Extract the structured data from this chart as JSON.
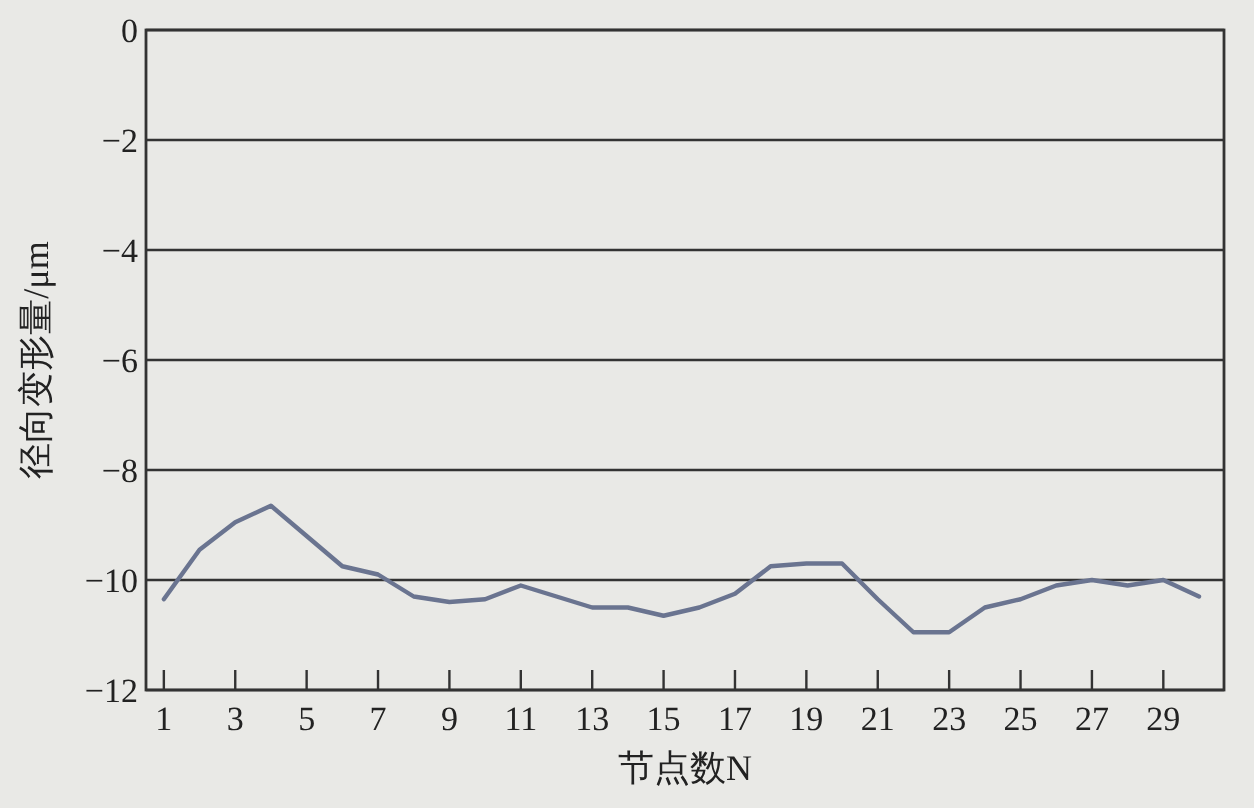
{
  "chart_data": {
    "type": "line",
    "xlabel": "节点数N",
    "ylabel": "径向变形量/μm",
    "x": [
      1,
      2,
      3,
      4,
      5,
      6,
      7,
      8,
      9,
      10,
      11,
      12,
      13,
      14,
      15,
      16,
      17,
      18,
      19,
      20,
      21,
      22,
      23,
      24,
      25,
      26,
      27,
      28,
      29,
      30
    ],
    "series": [
      {
        "color": "#6a7490",
        "values": [
          -10.35,
          -9.45,
          -8.95,
          -8.65,
          -9.2,
          -9.75,
          -9.9,
          -10.3,
          -10.4,
          -10.35,
          -10.1,
          -10.3,
          -10.5,
          -10.5,
          -10.65,
          -10.5,
          -10.25,
          -9.75,
          -9.7,
          -9.7,
          -10.35,
          -10.95,
          -10.95,
          -10.5,
          -10.35,
          -10.1,
          -10.0,
          -10.1,
          -10.0,
          -10.3
        ]
      }
    ],
    "xlim": [
      0.5,
      30.7
    ],
    "ylim": [
      -12,
      0
    ],
    "xticks": [
      1,
      3,
      5,
      7,
      9,
      11,
      13,
      15,
      17,
      19,
      21,
      23,
      25,
      27,
      29
    ],
    "yticks": [
      0,
      -2,
      -4,
      -6,
      -8,
      -10,
      -12
    ],
    "grid": "y",
    "marker": "none",
    "line_style": "solid"
  }
}
